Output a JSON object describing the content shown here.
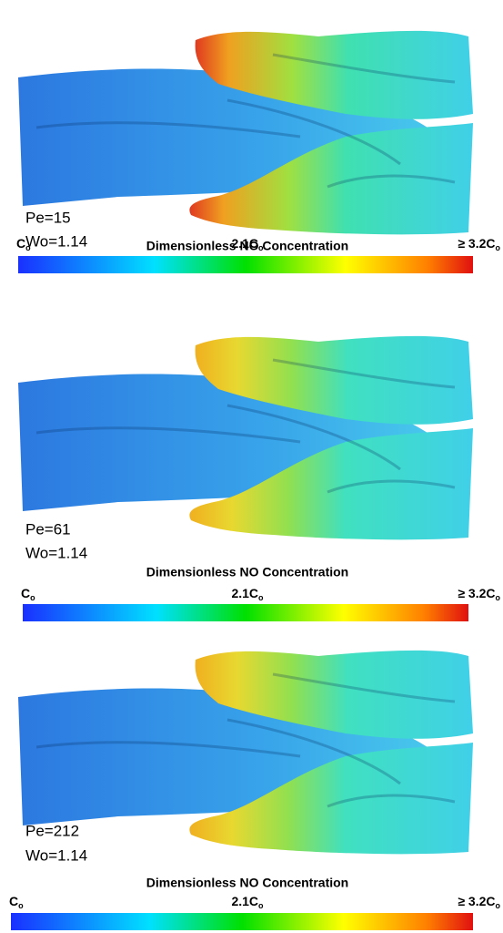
{
  "panels": [
    {
      "pe": "Pe=15",
      "wo": "Wo=1.14",
      "colorbar": {
        "title": "Dimensionless NO Concentration",
        "labels": [
          {
            "text": "C",
            "sub": "o"
          },
          {
            "text": "2.1C",
            "sub": "o"
          },
          {
            "text": "≥ 3.2C",
            "sub": "o"
          }
        ]
      }
    },
    {
      "pe": "Pe=61",
      "wo": "Wo=1.14",
      "colorbar": {
        "title": "Dimensionless NO Concentration",
        "labels": [
          {
            "text": "C",
            "sub": "o"
          },
          {
            "text": "2.1C",
            "sub": "o"
          },
          {
            "text": "≥ 3.2C",
            "sub": "o"
          }
        ]
      }
    },
    {
      "pe": "Pe=212",
      "wo": "Wo=1.14",
      "colorbar": {
        "title": "Dimensionless NO Concentration",
        "labels": [
          {
            "text": "C",
            "sub": "o"
          },
          {
            "text": "2.1C",
            "sub": "o"
          },
          {
            "text": "≥ 3.2C",
            "sub": "o"
          }
        ]
      }
    }
  ]
}
